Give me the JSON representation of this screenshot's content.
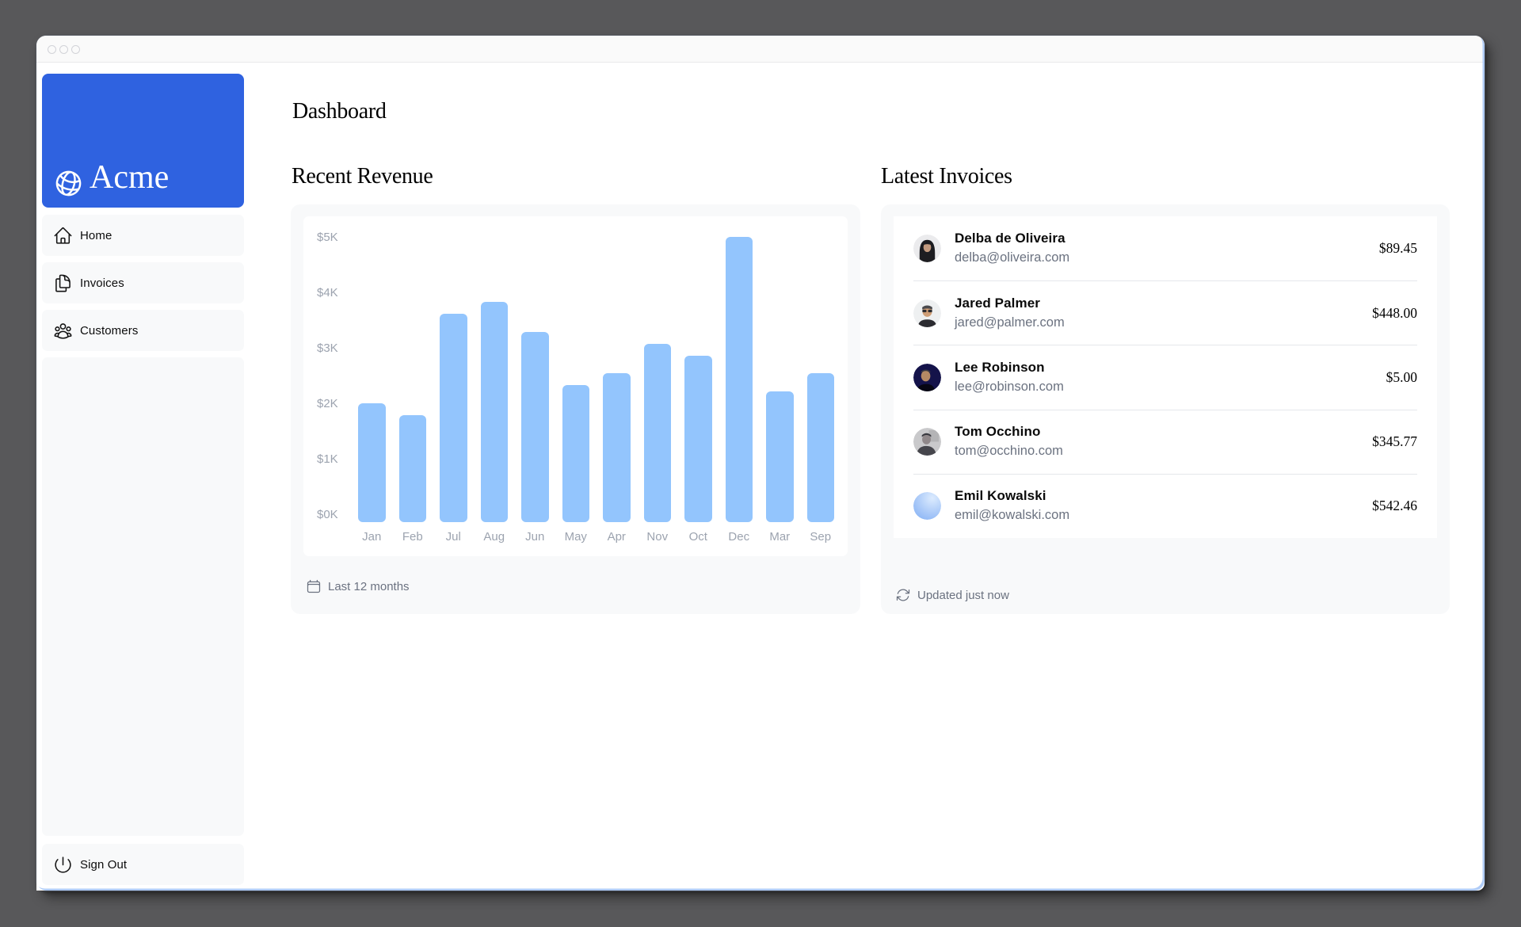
{
  "window": {
    "title": ""
  },
  "sidebar": {
    "logo_text": "Acme",
    "items": [
      {
        "label": "Home"
      },
      {
        "label": "Invoices"
      },
      {
        "label": "Customers"
      }
    ],
    "signout_label": "Sign Out"
  },
  "page_title": "Dashboard",
  "revenue_panel": {
    "heading": "Recent Revenue",
    "footer": "Last 12 months"
  },
  "invoices_panel": {
    "heading": "Latest Invoices",
    "footer": "Updated just now",
    "rows": [
      {
        "name": "Delba de Oliveira",
        "email": "delba@oliveira.com",
        "amount": "$89.45",
        "avatar": "delba"
      },
      {
        "name": "Jared Palmer",
        "email": "jared@palmer.com",
        "amount": "$448.00",
        "avatar": "jared"
      },
      {
        "name": "Lee Robinson",
        "email": "lee@robinson.com",
        "amount": "$5.00",
        "avatar": "lee"
      },
      {
        "name": "Tom Occhino",
        "email": "tom@occhino.com",
        "amount": "$345.77",
        "avatar": "tom"
      },
      {
        "name": "Emil Kowalski",
        "email": "emil@kowalski.com",
        "amount": "$542.46",
        "avatar": "emil"
      }
    ]
  },
  "chart_data": {
    "type": "bar",
    "title": "Recent Revenue",
    "categories": [
      "Jan",
      "Feb",
      "Jul",
      "Aug",
      "Jun",
      "May",
      "Apr",
      "Nov",
      "Oct",
      "Dec",
      "Mar",
      "Sep"
    ],
    "values": [
      2000,
      1800,
      3500,
      3700,
      3200,
      2300,
      2500,
      3000,
      2800,
      4800,
      2200,
      2500
    ],
    "y_tick_labels": [
      "$5K",
      "$4K",
      "$3K",
      "$2K",
      "$1K",
      "$0K"
    ],
    "ylim": [
      0,
      5000
    ],
    "bar_color": "#93c5fd",
    "grid": false,
    "legend": null
  },
  "colors": {
    "accent_blue": "#2f62e0",
    "bar_blue": "#93c5fd",
    "card_gray": "#f8f9fa",
    "muted_text": "#6b7280",
    "axis_text": "#9ca3af"
  }
}
